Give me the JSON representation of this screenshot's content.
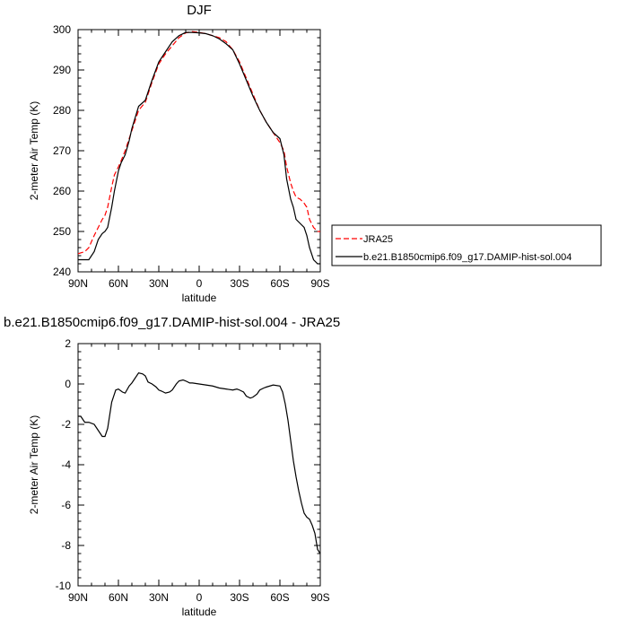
{
  "chart_data": [
    {
      "type": "line",
      "title": "DJF",
      "xlabel": "latitude",
      "ylabel": "2-meter Air Temp (K)",
      "xlim": [
        90,
        -90
      ],
      "ylim": [
        240,
        300
      ],
      "x_tick_values": [
        90,
        60,
        30,
        0,
        -30,
        -60,
        -90
      ],
      "x_tick_labels": [
        "90N",
        "60N",
        "30N",
        "0",
        "30S",
        "60S",
        "90S"
      ],
      "y_ticks": [
        240,
        250,
        260,
        270,
        280,
        290,
        300
      ],
      "grid": false,
      "legend_position": "right",
      "series": [
        {
          "name": "JRA25",
          "color": "#ff0000",
          "dash": "dashed",
          "x": [
            90,
            85,
            82,
            78,
            75,
            72,
            70,
            68,
            65,
            63,
            60,
            58,
            55,
            52,
            50,
            45,
            40,
            35,
            30,
            25,
            20,
            15,
            10,
            5,
            0,
            -5,
            -10,
            -15,
            -20,
            -25,
            -30,
            -35,
            -40,
            -45,
            -50,
            -55,
            -60,
            -63,
            -65,
            -68,
            -70,
            -72,
            -75,
            -78,
            -80,
            -82,
            -85,
            -88,
            -90
          ],
          "y": [
            244.5,
            245,
            246,
            249,
            251,
            253,
            254,
            256,
            261,
            264,
            266,
            267.5,
            270,
            273,
            275,
            280,
            282,
            287,
            291.5,
            294,
            296,
            298,
            299.2,
            299.5,
            299.3,
            299,
            298.5,
            298,
            297,
            295,
            292,
            288,
            284,
            280,
            277,
            274.5,
            272,
            270,
            266,
            262,
            260,
            258.5,
            258,
            257,
            256,
            253,
            251,
            250,
            250
          ]
        },
        {
          "name": "b.e21.B1850cmip6.f09_g17.DAMIP-hist-sol.004",
          "color": "#000000",
          "dash": "solid",
          "x": [
            90,
            85,
            82,
            78,
            75,
            72,
            70,
            68,
            65,
            63,
            60,
            58,
            55,
            52,
            50,
            45,
            40,
            35,
            30,
            25,
            20,
            15,
            10,
            5,
            0,
            -5,
            -10,
            -15,
            -20,
            -25,
            -30,
            -35,
            -40,
            -45,
            -50,
            -55,
            -60,
            -63,
            -65,
            -68,
            -70,
            -72,
            -75,
            -78,
            -80,
            -82,
            -85,
            -88,
            -90
          ],
          "y": [
            243,
            243,
            243,
            245,
            248,
            249.5,
            250,
            251,
            256,
            260,
            265,
            267,
            269,
            272.5,
            275.5,
            281,
            282.5,
            287.5,
            292,
            294.5,
            297,
            298.5,
            299.3,
            299.3,
            299.2,
            299,
            298.5,
            297.7,
            296.5,
            295,
            291.5,
            287.5,
            283.5,
            280,
            277,
            274.5,
            273,
            269,
            263,
            258,
            256,
            253,
            252,
            251,
            249,
            246,
            243,
            242,
            242
          ]
        }
      ]
    },
    {
      "type": "line",
      "title": "b.e21.B1850cmip6.f09_g17.DAMIP-hist-sol.004 - JRA25",
      "xlabel": "latitude",
      "ylabel": "2-meter Air Temp (K)",
      "xlim": [
        90,
        -90
      ],
      "ylim": [
        -10,
        2
      ],
      "x_tick_values": [
        90,
        60,
        30,
        0,
        -30,
        -60,
        -90
      ],
      "x_tick_labels": [
        "90N",
        "60N",
        "30N",
        "0",
        "30S",
        "60S",
        "90S"
      ],
      "y_ticks": [
        -10,
        -8,
        -6,
        -4,
        -2,
        0,
        2
      ],
      "grid": false,
      "series": [
        {
          "color": "#000000",
          "dash": "solid",
          "x": [
            90,
            88,
            85,
            82,
            78,
            75,
            72,
            70,
            68,
            65,
            62,
            60,
            57,
            55,
            52,
            50,
            48,
            45,
            42,
            40,
            38,
            35,
            32,
            30,
            28,
            25,
            22,
            20,
            17,
            15,
            12,
            10,
            7,
            5,
            0,
            -5,
            -10,
            -15,
            -20,
            -25,
            -28,
            -30,
            -33,
            -35,
            -38,
            -40,
            -43,
            -45,
            -48,
            -50,
            -55,
            -60,
            -62,
            -64,
            -66,
            -68,
            -70,
            -72,
            -74,
            -76,
            -78,
            -80,
            -82,
            -84,
            -86,
            -88,
            -90
          ],
          "y": [
            -1.6,
            -1.6,
            -1.9,
            -1.9,
            -2.0,
            -2.3,
            -2.6,
            -2.6,
            -2.2,
            -0.9,
            -0.3,
            -0.25,
            -0.4,
            -0.45,
            -0.1,
            0.05,
            0.25,
            0.55,
            0.5,
            0.4,
            0.1,
            0.0,
            -0.15,
            -0.3,
            -0.35,
            -0.45,
            -0.4,
            -0.3,
            0.0,
            0.15,
            0.2,
            0.15,
            0.05,
            0.05,
            0.0,
            -0.05,
            -0.1,
            -0.2,
            -0.25,
            -0.3,
            -0.25,
            -0.3,
            -0.4,
            -0.6,
            -0.7,
            -0.65,
            -0.5,
            -0.3,
            -0.2,
            -0.15,
            -0.05,
            -0.1,
            -0.4,
            -1.0,
            -1.8,
            -2.8,
            -3.8,
            -4.6,
            -5.3,
            -5.9,
            -6.4,
            -6.6,
            -6.7,
            -7.0,
            -7.4,
            -8.2,
            -8.4
          ]
        }
      ]
    }
  ]
}
